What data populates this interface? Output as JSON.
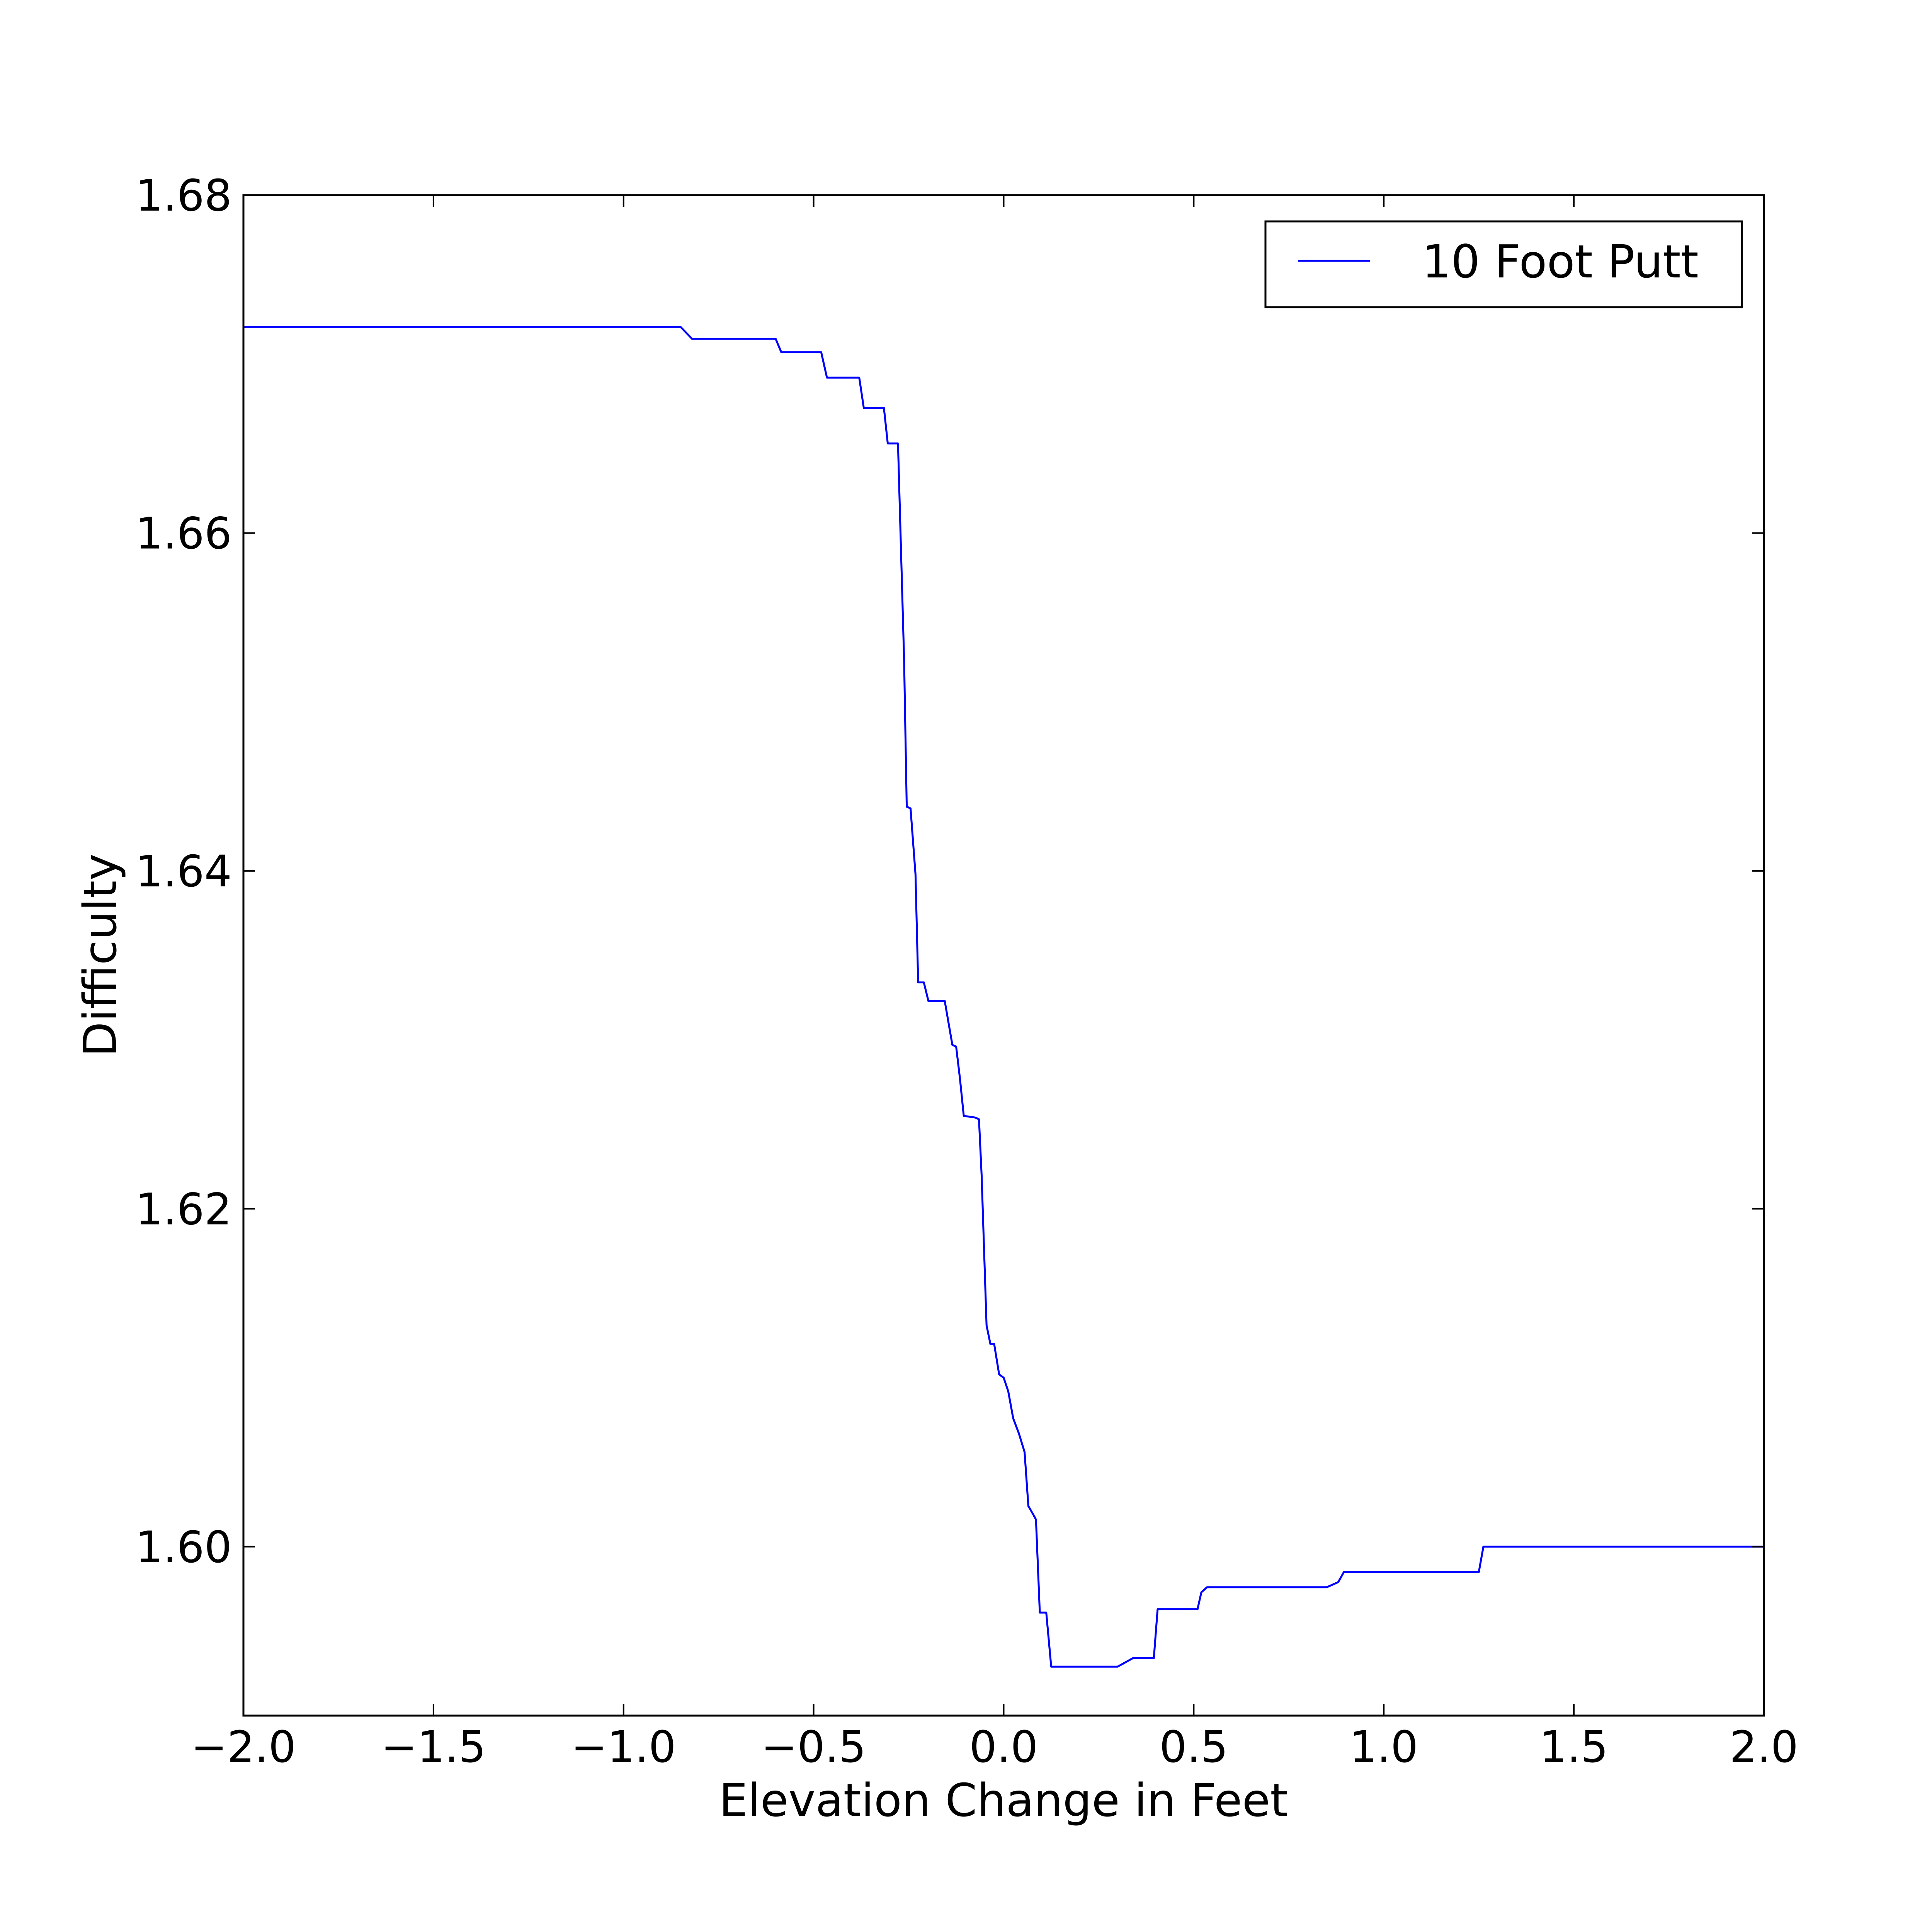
{
  "chart_data": {
    "type": "line",
    "xlabel": "Elevation Change in Feet",
    "ylabel": "Difficulty",
    "xlim": [
      -2.0,
      2.0
    ],
    "ylim": [
      1.59,
      1.68
    ],
    "xticks": [
      {
        "value": -2.0,
        "label": "−2.0"
      },
      {
        "value": -1.5,
        "label": "−1.5"
      },
      {
        "value": -1.0,
        "label": "−1.0"
      },
      {
        "value": -0.5,
        "label": "−0.5"
      },
      {
        "value": 0.0,
        "label": "0.0"
      },
      {
        "value": 0.5,
        "label": "0.5"
      },
      {
        "value": 1.0,
        "label": "1.0"
      },
      {
        "value": 1.5,
        "label": "1.5"
      },
      {
        "value": 2.0,
        "label": "2.0"
      }
    ],
    "yticks": [
      {
        "value": 1.6,
        "label": "1.60"
      },
      {
        "value": 1.62,
        "label": "1.62"
      },
      {
        "value": 1.64,
        "label": "1.64"
      },
      {
        "value": 1.66,
        "label": "1.66"
      },
      {
        "value": 1.68,
        "label": "1.68"
      }
    ],
    "grid": false,
    "legend_position": "top-right",
    "series": [
      {
        "name": "10 Foot Putt",
        "color": "#0000ff",
        "x": [
          -2.0,
          -0.85,
          -0.82,
          -0.6,
          -0.585,
          -0.48,
          -0.465,
          -0.38,
          -0.368,
          -0.315,
          -0.305,
          -0.278,
          -0.262,
          -0.255,
          -0.245,
          -0.232,
          -0.225,
          -0.21,
          -0.198,
          -0.185,
          -0.172,
          -0.155,
          -0.135,
          -0.125,
          -0.115,
          -0.105,
          -0.075,
          -0.065,
          -0.058,
          -0.045,
          -0.035,
          -0.025,
          -0.012,
          0.0,
          0.012,
          0.025,
          0.03,
          0.04,
          0.055,
          0.065,
          0.078,
          0.085,
          0.095,
          0.112,
          0.125,
          0.14,
          0.152,
          0.165,
          0.175,
          0.185,
          0.2,
          0.22,
          0.25,
          0.3,
          0.34,
          0.348,
          0.36,
          0.395,
          0.405,
          0.415,
          0.45,
          0.5,
          0.51,
          0.52,
          0.535,
          0.55,
          0.6,
          0.85,
          0.88,
          0.895,
          0.91,
          1.0,
          1.2,
          1.25,
          1.262,
          1.275,
          1.5,
          2.0
        ],
        "y": [
          1.6722,
          1.6722,
          1.6715,
          1.6715,
          1.6707,
          1.6707,
          1.6692,
          1.6692,
          1.6674,
          1.6674,
          1.6653,
          1.6653,
          1.6525,
          1.6438,
          1.6437,
          1.6398,
          1.6334,
          1.6334,
          1.6323,
          1.6323,
          1.6323,
          1.6323,
          1.6297,
          1.6296,
          1.6277,
          1.6255,
          1.6254,
          1.6253,
          1.622,
          1.6131,
          1.612,
          1.612,
          1.6102,
          1.61,
          1.6092,
          1.6076,
          1.6073,
          1.6067,
          1.6056,
          1.6024,
          1.6019,
          1.6016,
          1.5961,
          1.5961,
          1.5929,
          1.5929,
          1.5929,
          1.5929,
          1.5929,
          1.5929,
          1.5929,
          1.5929,
          1.5929,
          1.5929,
          1.5934,
          1.5934,
          1.5934,
          1.5934,
          1.5963,
          1.5963,
          1.5963,
          1.5963,
          1.5963,
          1.5973,
          1.5976,
          1.5976,
          1.5976,
          1.5976,
          1.5979,
          1.5985,
          1.5985,
          1.5985,
          1.5985,
          1.5985,
          1.6,
          1.6,
          1.6,
          1.6
        ]
      }
    ]
  }
}
